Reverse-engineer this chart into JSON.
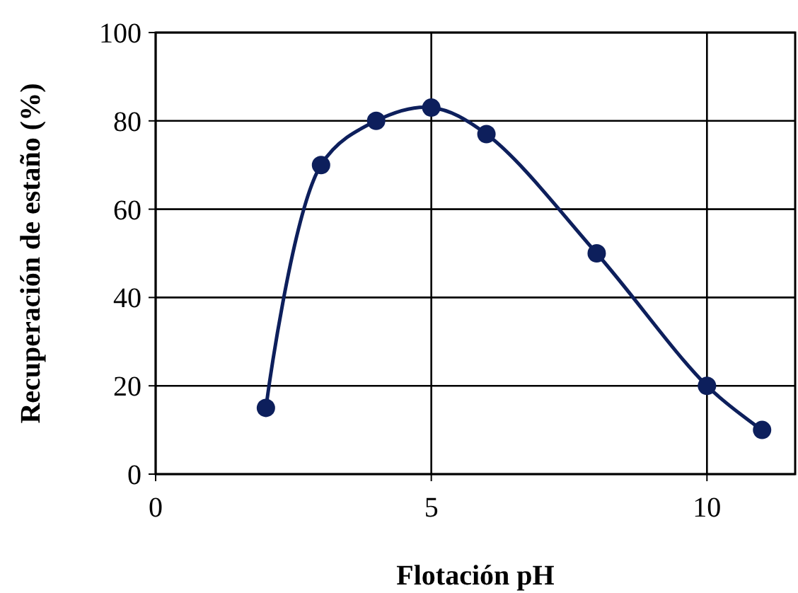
{
  "chart_data": {
    "type": "line",
    "xlabel": "Flotación pH",
    "ylabel": "Recuperación de estaño (%)",
    "x": [
      2,
      3,
      4,
      5,
      6,
      8,
      10,
      11
    ],
    "series": [
      {
        "color": "#0d1f5c",
        "values": [
          15,
          70,
          80,
          83,
          77,
          50,
          20,
          10
        ]
      }
    ],
    "xlim": [
      0,
      11.6
    ],
    "xticks": [
      0,
      5,
      10
    ],
    "ylim": [
      0,
      100
    ],
    "yticks": [
      0,
      20,
      40,
      60,
      80,
      100
    ],
    "grid": true,
    "marker": "circle",
    "line_style": "solid"
  }
}
